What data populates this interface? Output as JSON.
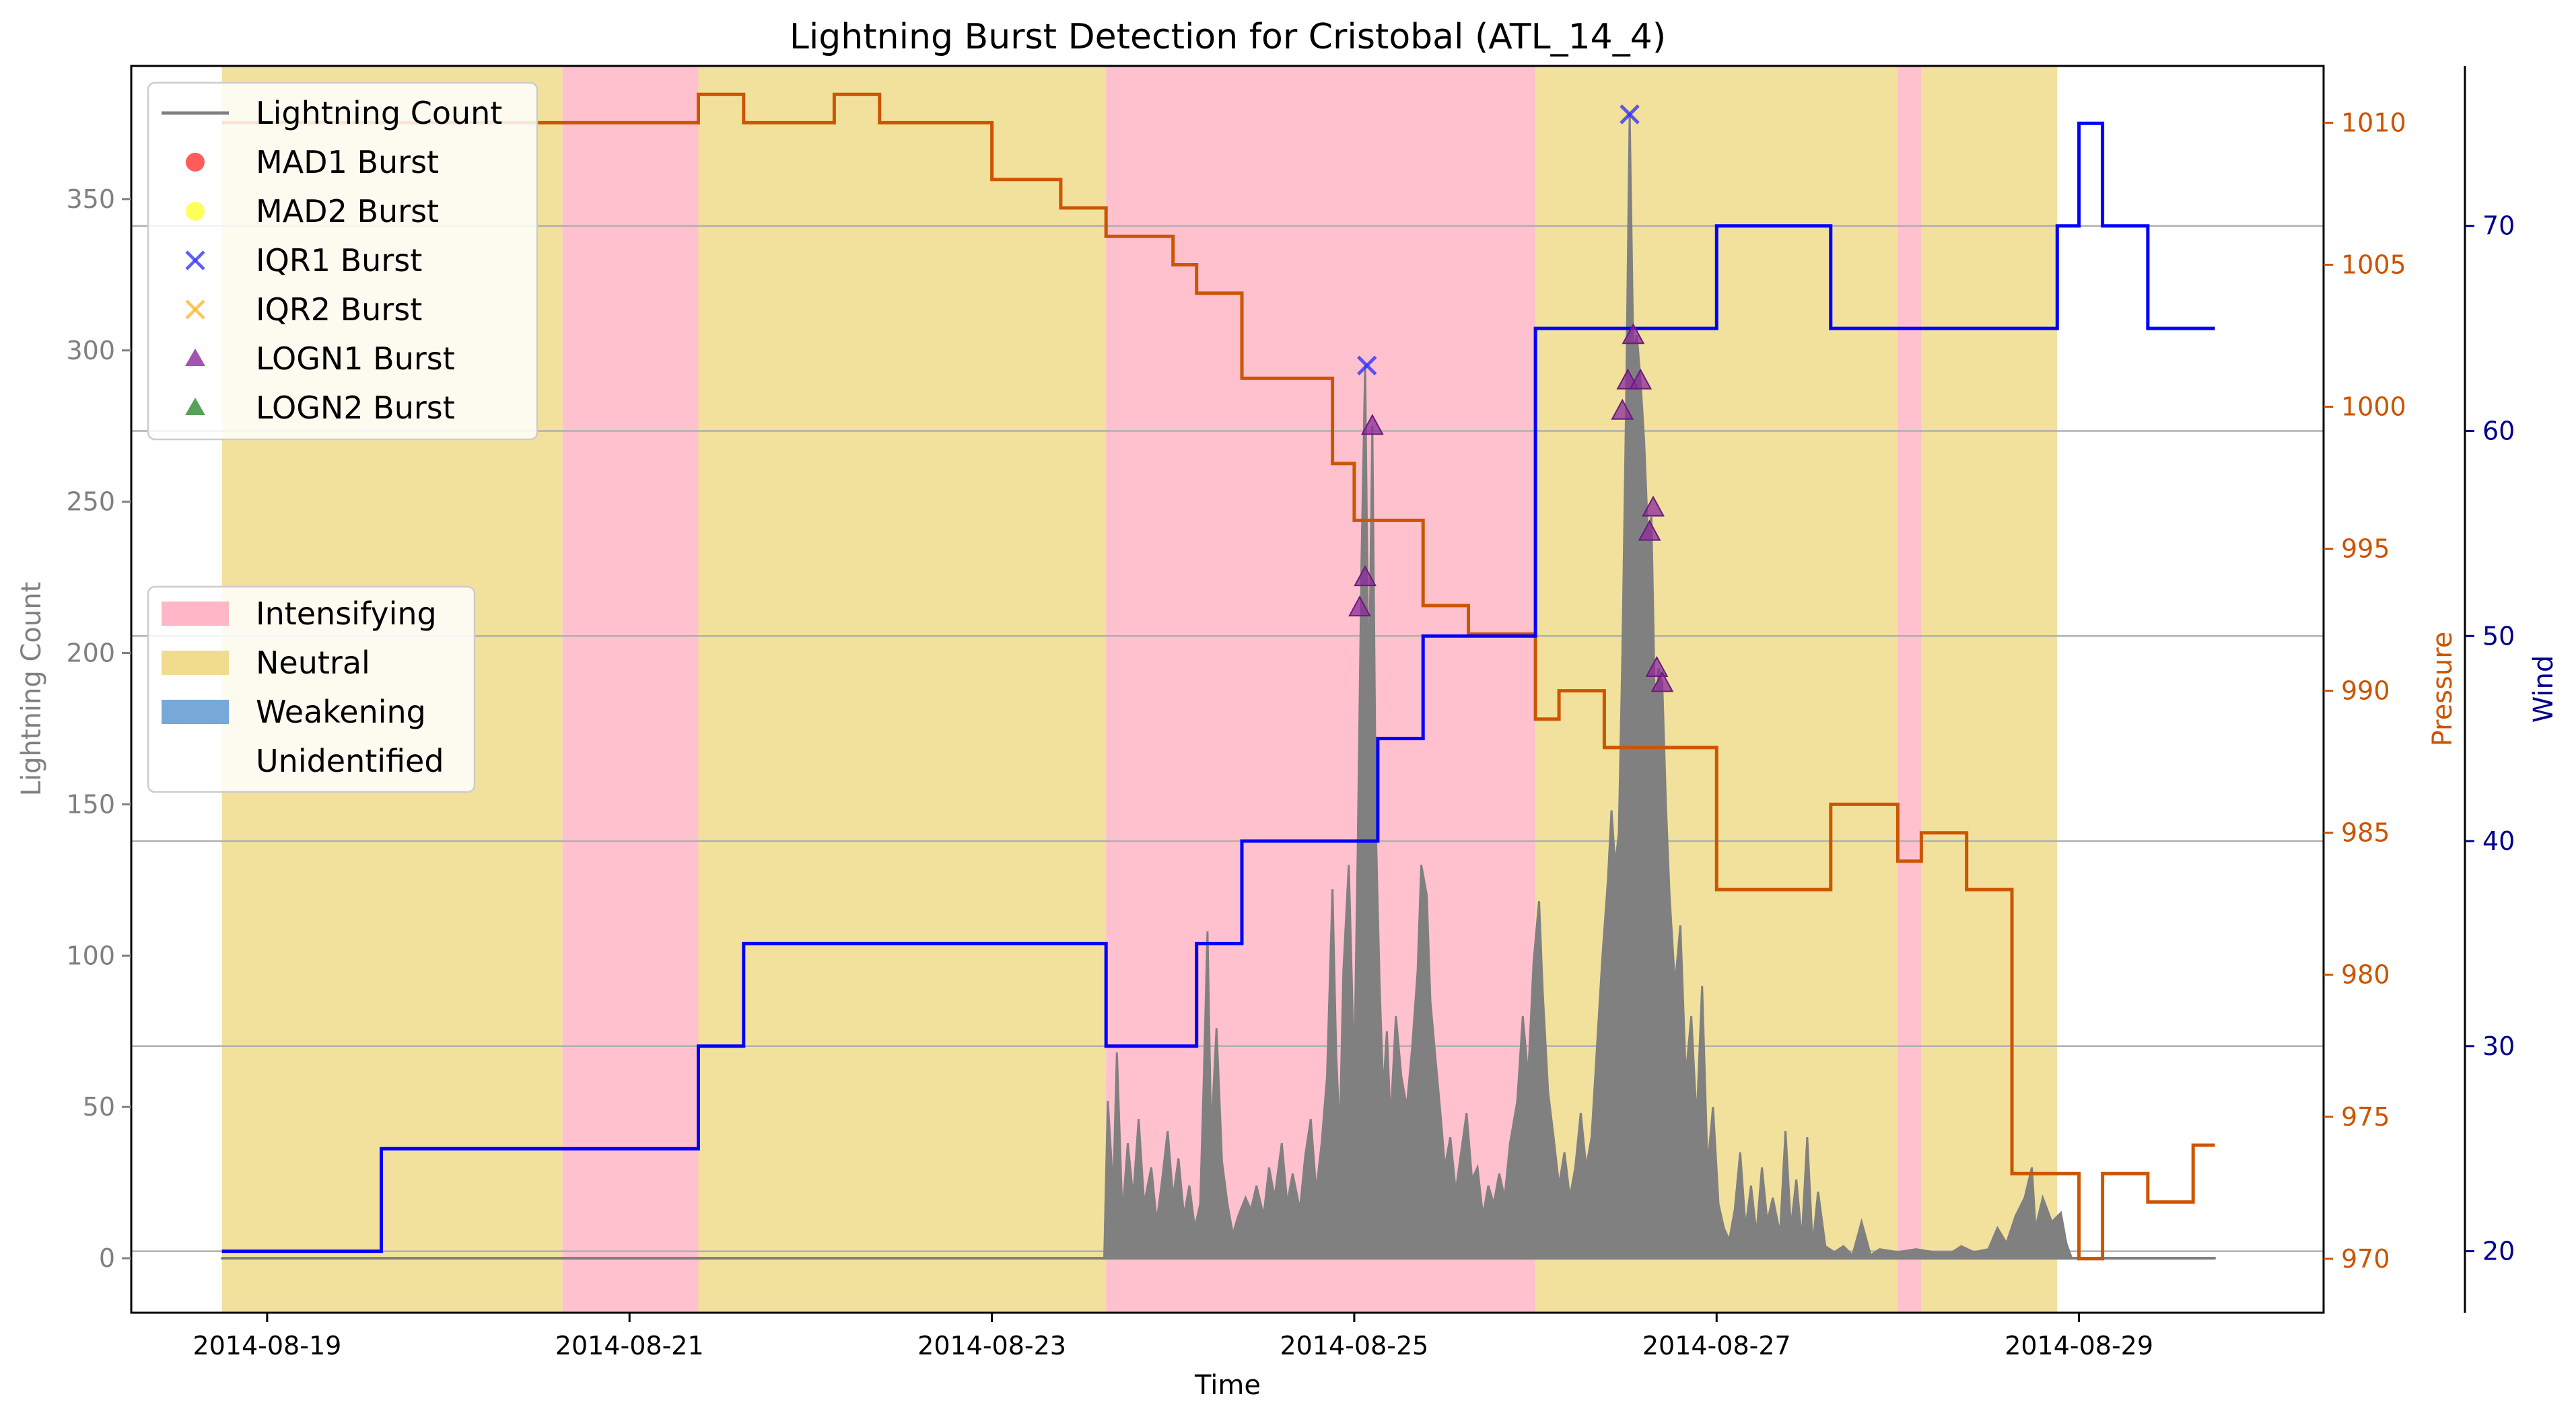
{
  "chart_data": {
    "type": "line",
    "title": "Lightning Burst Detection for Cristobal (ATL_14_4)",
    "xlabel": "Time",
    "ylabel_left": "Lightning Count",
    "ylabel_right1": "Pressure",
    "ylabel_right2": "Wind",
    "x_tick_labels": [
      "2014-08-19",
      "2014-08-21",
      "2014-08-23",
      "2014-08-25",
      "2014-08-27",
      "2014-08-29"
    ],
    "x_tick_dates": [
      0,
      2,
      4,
      6,
      8,
      10
    ],
    "x_origin_date": "2014-08-19",
    "xlim": [
      -0.75,
      11.35
    ],
    "y_left": {
      "label": "Lightning Count",
      "ylim": [
        -18,
        394
      ],
      "ticks": [
        0,
        50,
        100,
        150,
        200,
        250,
        300,
        350
      ]
    },
    "y_pressure": {
      "label": "Pressure",
      "ylim": [
        968.1,
        1012.0
      ],
      "ticks": [
        970,
        975,
        980,
        985,
        990,
        995,
        1000,
        1005,
        1010
      ]
    },
    "y_wind": {
      "label": "Wind",
      "ylim": [
        17.0,
        77.8
      ],
      "ticks": [
        20,
        30,
        40,
        50,
        60,
        70
      ]
    },
    "grid": "horizontal lines on wind axis",
    "colors": {
      "lightning": "#808080",
      "pressure": "#cc5500",
      "wind": "#0000ff",
      "intensifying": "#ffb6c6",
      "neutral": "#f0dc8c",
      "weakening": "#76a8d8",
      "grid": "#b0b0b0",
      "logn1": "#7b1fa2",
      "iqr1": "#3333ff"
    },
    "legend_markers": {
      "position": "upper left",
      "entries": [
        {
          "label": "Lightning Count",
          "kind": "line",
          "color": "#808080"
        },
        {
          "label": "MAD1 Burst",
          "kind": "circle",
          "color": "#ff3333"
        },
        {
          "label": "MAD2 Burst",
          "kind": "circle",
          "color": "#ffff33"
        },
        {
          "label": "IQR1 Burst",
          "kind": "x",
          "color": "#3333ff"
        },
        {
          "label": "IQR2 Burst",
          "kind": "x",
          "color": "#ffb733"
        },
        {
          "label": "LOGN1 Burst",
          "kind": "triangle",
          "color": "#8b2a9b"
        },
        {
          "label": "LOGN2 Burst",
          "kind": "triangle",
          "color": "#2e8b2e"
        }
      ]
    },
    "legend_phases": {
      "position": "center left",
      "entries": [
        {
          "label": "Intensifying",
          "color": "#ffb6c6"
        },
        {
          "label": "Neutral",
          "color": "#f0dc8c"
        },
        {
          "label": "Weakening",
          "color": "#76a8d8"
        },
        {
          "label": "Unidentified",
          "color": "none"
        }
      ]
    },
    "phases": [
      {
        "phase": "Neutral",
        "start": -0.25,
        "end": 1.63
      },
      {
        "phase": "Intensifying",
        "start": 1.63,
        "end": 2.38
      },
      {
        "phase": "Neutral",
        "start": 2.38,
        "end": 4.63
      },
      {
        "phase": "Intensifying",
        "start": 4.63,
        "end": 7.0
      },
      {
        "phase": "Neutral",
        "start": 7.0,
        "end": 9.0
      },
      {
        "phase": "Intensifying",
        "start": 9.0,
        "end": 9.13
      },
      {
        "phase": "Neutral",
        "start": 9.13,
        "end": 9.88
      }
    ],
    "pressure_series": {
      "name": "Pressure",
      "points": [
        [
          -0.25,
          1010
        ],
        [
          2.38,
          1010
        ],
        [
          2.38,
          1011
        ],
        [
          2.63,
          1011
        ],
        [
          2.63,
          1010
        ],
        [
          3.13,
          1010
        ],
        [
          3.13,
          1011
        ],
        [
          3.38,
          1011
        ],
        [
          3.38,
          1010
        ],
        [
          4.0,
          1010
        ],
        [
          4.0,
          1008
        ],
        [
          4.38,
          1008
        ],
        [
          4.38,
          1007
        ],
        [
          4.63,
          1007
        ],
        [
          4.63,
          1006
        ],
        [
          5.0,
          1006
        ],
        [
          5.0,
          1005
        ],
        [
          5.13,
          1005
        ],
        [
          5.13,
          1004
        ],
        [
          5.38,
          1004
        ],
        [
          5.38,
          1001
        ],
        [
          5.88,
          1001
        ],
        [
          5.88,
          998
        ],
        [
          6.0,
          998
        ],
        [
          6.0,
          996
        ],
        [
          6.38,
          996
        ],
        [
          6.38,
          993
        ],
        [
          6.63,
          993
        ],
        [
          6.63,
          992
        ],
        [
          7.0,
          992
        ],
        [
          7.0,
          989
        ],
        [
          7.13,
          989
        ],
        [
          7.13,
          990
        ],
        [
          7.38,
          990
        ],
        [
          7.38,
          988
        ],
        [
          8.0,
          988
        ],
        [
          8.0,
          983
        ],
        [
          8.63,
          983
        ],
        [
          8.63,
          986
        ],
        [
          9.0,
          986
        ],
        [
          9.0,
          984
        ],
        [
          9.13,
          984
        ],
        [
          9.13,
          985
        ],
        [
          9.38,
          985
        ],
        [
          9.38,
          983
        ],
        [
          9.63,
          983
        ],
        [
          9.63,
          973
        ],
        [
          10.0,
          973
        ],
        [
          10.0,
          970
        ],
        [
          10.13,
          970
        ],
        [
          10.13,
          973
        ],
        [
          10.38,
          973
        ],
        [
          10.38,
          972
        ],
        [
          10.63,
          972
        ],
        [
          10.63,
          974
        ],
        [
          10.75,
          974
        ]
      ]
    },
    "wind_series": {
      "name": "Wind",
      "points": [
        [
          -0.25,
          20
        ],
        [
          0.63,
          20
        ],
        [
          0.63,
          25
        ],
        [
          2.38,
          25
        ],
        [
          2.38,
          30
        ],
        [
          2.63,
          30
        ],
        [
          2.63,
          35
        ],
        [
          4.63,
          35
        ],
        [
          4.63,
          30
        ],
        [
          5.13,
          30
        ],
        [
          5.13,
          35
        ],
        [
          5.38,
          35
        ],
        [
          5.38,
          40
        ],
        [
          6.13,
          40
        ],
        [
          6.13,
          45
        ],
        [
          6.38,
          45
        ],
        [
          6.38,
          50
        ],
        [
          7.0,
          50
        ],
        [
          7.0,
          65
        ],
        [
          8.0,
          65
        ],
        [
          8.0,
          70
        ],
        [
          8.63,
          70
        ],
        [
          8.63,
          65
        ],
        [
          9.88,
          65
        ],
        [
          9.88,
          70
        ],
        [
          10.0,
          70
        ],
        [
          10.0,
          75
        ],
        [
          10.13,
          75
        ],
        [
          10.13,
          70
        ],
        [
          10.38,
          70
        ],
        [
          10.38,
          65
        ],
        [
          10.75,
          65
        ]
      ]
    },
    "lightning_series": {
      "name": "Lightning Count",
      "points": [
        [
          -0.25,
          0
        ],
        [
          4.62,
          0
        ],
        [
          4.64,
          52
        ],
        [
          4.67,
          22
        ],
        [
          4.69,
          68
        ],
        [
          4.72,
          14
        ],
        [
          4.75,
          38
        ],
        [
          4.78,
          20
        ],
        [
          4.81,
          46
        ],
        [
          4.84,
          18
        ],
        [
          4.88,
          30
        ],
        [
          4.91,
          12
        ],
        [
          4.94,
          26
        ],
        [
          4.97,
          42
        ],
        [
          5.0,
          20
        ],
        [
          5.03,
          33
        ],
        [
          5.06,
          14
        ],
        [
          5.09,
          24
        ],
        [
          5.12,
          10
        ],
        [
          5.15,
          18
        ],
        [
          5.17,
          60
        ],
        [
          5.19,
          108
        ],
        [
          5.21,
          40
        ],
        [
          5.24,
          76
        ],
        [
          5.27,
          32
        ],
        [
          5.3,
          18
        ],
        [
          5.33,
          8
        ],
        [
          5.36,
          14
        ],
        [
          5.4,
          20
        ],
        [
          5.43,
          16
        ],
        [
          5.46,
          24
        ],
        [
          5.5,
          14
        ],
        [
          5.53,
          30
        ],
        [
          5.56,
          20
        ],
        [
          5.6,
          38
        ],
        [
          5.63,
          18
        ],
        [
          5.66,
          28
        ],
        [
          5.7,
          16
        ],
        [
          5.73,
          34
        ],
        [
          5.76,
          46
        ],
        [
          5.79,
          22
        ],
        [
          5.82,
          38
        ],
        [
          5.85,
          60
        ],
        [
          5.88,
          122
        ],
        [
          5.9,
          68
        ],
        [
          5.92,
          40
        ],
        [
          5.94,
          95
        ],
        [
          5.97,
          130
        ],
        [
          6.0,
          60
        ],
        [
          6.02,
          138
        ],
        [
          6.04,
          230
        ],
        [
          6.06,
          295
        ],
        [
          6.08,
          180
        ],
        [
          6.1,
          275
        ],
        [
          6.12,
          140
        ],
        [
          6.14,
          90
        ],
        [
          6.16,
          55
        ],
        [
          6.18,
          75
        ],
        [
          6.2,
          45
        ],
        [
          6.23,
          80
        ],
        [
          6.26,
          60
        ],
        [
          6.29,
          50
        ],
        [
          6.32,
          70
        ],
        [
          6.35,
          95
        ],
        [
          6.37,
          130
        ],
        [
          6.4,
          120
        ],
        [
          6.42,
          85
        ],
        [
          6.45,
          65
        ],
        [
          6.48,
          45
        ],
        [
          6.5,
          30
        ],
        [
          6.53,
          40
        ],
        [
          6.56,
          22
        ],
        [
          6.59,
          35
        ],
        [
          6.62,
          48
        ],
        [
          6.65,
          26
        ],
        [
          6.68,
          30
        ],
        [
          6.71,
          14
        ],
        [
          6.74,
          24
        ],
        [
          6.77,
          18
        ],
        [
          6.8,
          28
        ],
        [
          6.83,
          20
        ],
        [
          6.86,
          38
        ],
        [
          6.9,
          52
        ],
        [
          6.93,
          80
        ],
        [
          6.96,
          60
        ],
        [
          6.99,
          98
        ],
        [
          7.02,
          118
        ],
        [
          7.04,
          88
        ],
        [
          7.07,
          55
        ],
        [
          7.1,
          40
        ],
        [
          7.13,
          24
        ],
        [
          7.16,
          35
        ],
        [
          7.19,
          20
        ],
        [
          7.22,
          30
        ],
        [
          7.25,
          48
        ],
        [
          7.28,
          30
        ],
        [
          7.31,
          40
        ],
        [
          7.34,
          70
        ],
        [
          7.37,
          100
        ],
        [
          7.4,
          125
        ],
        [
          7.42,
          148
        ],
        [
          7.44,
          130
        ],
        [
          7.46,
          140
        ],
        [
          7.48,
          200
        ],
        [
          7.5,
          280
        ],
        [
          7.52,
          378
        ],
        [
          7.54,
          300
        ],
        [
          7.56,
          305
        ],
        [
          7.58,
          290
        ],
        [
          7.6,
          270
        ],
        [
          7.62,
          240
        ],
        [
          7.64,
          245
        ],
        [
          7.66,
          180
        ],
        [
          7.68,
          195
        ],
        [
          7.7,
          190
        ],
        [
          7.72,
          150
        ],
        [
          7.74,
          120
        ],
        [
          7.77,
          90
        ],
        [
          7.8,
          110
        ],
        [
          7.83,
          60
        ],
        [
          7.86,
          80
        ],
        [
          7.89,
          45
        ],
        [
          7.92,
          90
        ],
        [
          7.95,
          30
        ],
        [
          7.98,
          50
        ],
        [
          8.01,
          18
        ],
        [
          8.04,
          10
        ],
        [
          8.07,
          6
        ],
        [
          8.1,
          16
        ],
        [
          8.13,
          35
        ],
        [
          8.16,
          10
        ],
        [
          8.19,
          24
        ],
        [
          8.22,
          8
        ],
        [
          8.25,
          30
        ],
        [
          8.28,
          12
        ],
        [
          8.31,
          20
        ],
        [
          8.35,
          8
        ],
        [
          8.38,
          42
        ],
        [
          8.41,
          10
        ],
        [
          8.44,
          26
        ],
        [
          8.47,
          6
        ],
        [
          8.5,
          40
        ],
        [
          8.53,
          4
        ],
        [
          8.56,
          22
        ],
        [
          8.6,
          4
        ],
        [
          8.65,
          2
        ],
        [
          8.7,
          4
        ],
        [
          8.75,
          1
        ],
        [
          8.8,
          12
        ],
        [
          8.85,
          1
        ],
        [
          8.9,
          3
        ],
        [
          9.0,
          2
        ],
        [
          9.1,
          3
        ],
        [
          9.2,
          2
        ],
        [
          9.3,
          2
        ],
        [
          9.35,
          4
        ],
        [
          9.42,
          2
        ],
        [
          9.5,
          3
        ],
        [
          9.55,
          10
        ],
        [
          9.6,
          5
        ],
        [
          9.65,
          14
        ],
        [
          9.7,
          20
        ],
        [
          9.74,
          30
        ],
        [
          9.76,
          10
        ],
        [
          9.8,
          20
        ],
        [
          9.85,
          12
        ],
        [
          9.9,
          15
        ],
        [
          9.93,
          5
        ],
        [
          9.96,
          0
        ],
        [
          10.75,
          0
        ]
      ]
    },
    "iqr1_bursts": [
      [
        6.07,
        295
      ],
      [
        7.52,
        378
      ]
    ],
    "logn1_bursts": [
      [
        6.03,
        215
      ],
      [
        6.06,
        225
      ],
      [
        6.1,
        275
      ],
      [
        7.48,
        280
      ],
      [
        7.51,
        290
      ],
      [
        7.54,
        305
      ],
      [
        7.58,
        290
      ],
      [
        7.63,
        240
      ],
      [
        7.65,
        248
      ],
      [
        7.67,
        195
      ],
      [
        7.7,
        190
      ]
    ]
  }
}
